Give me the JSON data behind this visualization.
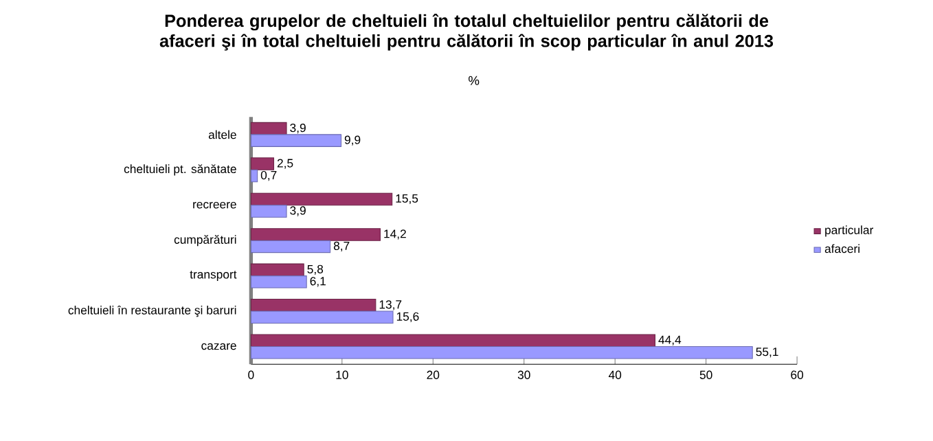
{
  "chart_data": {
    "type": "bar",
    "orientation": "horizontal",
    "title": "Ponderea grupelor de cheltuieli în totalul cheltuielilor pentru călătorii de afaceri şi în total cheltuieli pentru călătorii în scop particular  în anul 2013",
    "subtitle": "%",
    "categories": [
      "altele",
      "cheltuieli pt. sănătate",
      "recreere",
      "cumpărături",
      "transport",
      "cheltuieli în restaurante şi baruri",
      "cazare"
    ],
    "series": [
      {
        "name": "particular",
        "color": "#993366",
        "values": [
          3.9,
          2.5,
          15.5,
          14.2,
          5.8,
          13.7,
          44.4
        ],
        "value_labels": [
          "3,9",
          "2,5",
          "15,5",
          "14,2",
          "5,8",
          "13,7",
          "44,4"
        ]
      },
      {
        "name": "afaceri",
        "color": "#9999ff",
        "values": [
          9.9,
          0.7,
          3.9,
          8.7,
          6.1,
          15.6,
          55.1
        ],
        "value_labels": [
          "9,9",
          "0,7",
          "3,9",
          "8,7",
          "6,1",
          "15,6",
          "55,1"
        ]
      }
    ],
    "xlim": [
      0,
      60
    ],
    "xticks": [
      0,
      10,
      20,
      30,
      40,
      50,
      60
    ],
    "grid": false,
    "legend": "right"
  }
}
